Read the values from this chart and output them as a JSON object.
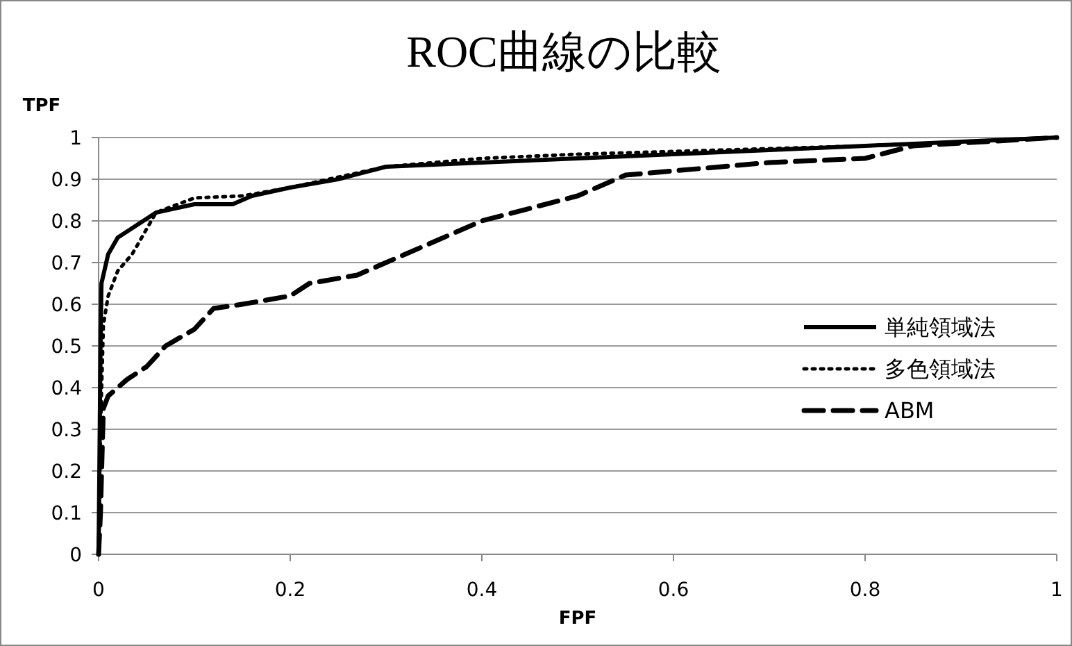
{
  "chart_data": {
    "type": "line",
    "title": "ROC曲線の比較",
    "xlabel": "FPF",
    "ylabel": "TPF",
    "xlim": [
      0,
      1
    ],
    "ylim": [
      0,
      1
    ],
    "xticks": [
      0,
      0.2,
      0.4,
      0.6,
      0.8,
      1
    ],
    "yticks": [
      0,
      0.1,
      0.2,
      0.3,
      0.4,
      0.5,
      0.6,
      0.7,
      0.8,
      0.9,
      1
    ],
    "grid": "y",
    "legend": "right",
    "marker": "none",
    "series": [
      {
        "name": "単純領域法",
        "color": "#000000",
        "line_style": "solid",
        "x": [
          0,
          0.002,
          0.003,
          0.01,
          0.02,
          0.04,
          0.06,
          0.1,
          0.14,
          0.16,
          0.2,
          0.25,
          0.3,
          0.4,
          0.5,
          0.6,
          0.8,
          1
        ],
        "values": [
          0,
          0.5,
          0.65,
          0.72,
          0.76,
          0.79,
          0.82,
          0.84,
          0.84,
          0.86,
          0.88,
          0.9,
          0.93,
          0.94,
          0.95,
          0.96,
          0.98,
          1
        ]
      },
      {
        "name": "多色領域法",
        "color": "#000000",
        "line_style": "dotted",
        "x": [
          0,
          0.002,
          0.005,
          0.01,
          0.02,
          0.035,
          0.05,
          0.06,
          0.1,
          0.15,
          0.2,
          0.3,
          0.4,
          0.5,
          0.8,
          1
        ],
        "values": [
          0,
          0.3,
          0.55,
          0.62,
          0.68,
          0.72,
          0.78,
          0.82,
          0.855,
          0.86,
          0.88,
          0.93,
          0.95,
          0.96,
          0.98,
          1
        ]
      },
      {
        "name": "ABM",
        "color": "#000000",
        "line_style": "dashed",
        "x": [
          0,
          0.002,
          0.004,
          0.005,
          0.01,
          0.02,
          0.03,
          0.05,
          0.07,
          0.1,
          0.12,
          0.15,
          0.2,
          0.22,
          0.27,
          0.3,
          0.35,
          0.4,
          0.45,
          0.5,
          0.55,
          0.6,
          0.7,
          0.8,
          0.85,
          1
        ],
        "values": [
          0,
          0.1,
          0.27,
          0.35,
          0.38,
          0.4,
          0.42,
          0.45,
          0.5,
          0.54,
          0.59,
          0.6,
          0.62,
          0.65,
          0.67,
          0.7,
          0.75,
          0.8,
          0.83,
          0.86,
          0.91,
          0.92,
          0.94,
          0.95,
          0.98,
          1
        ]
      }
    ]
  }
}
